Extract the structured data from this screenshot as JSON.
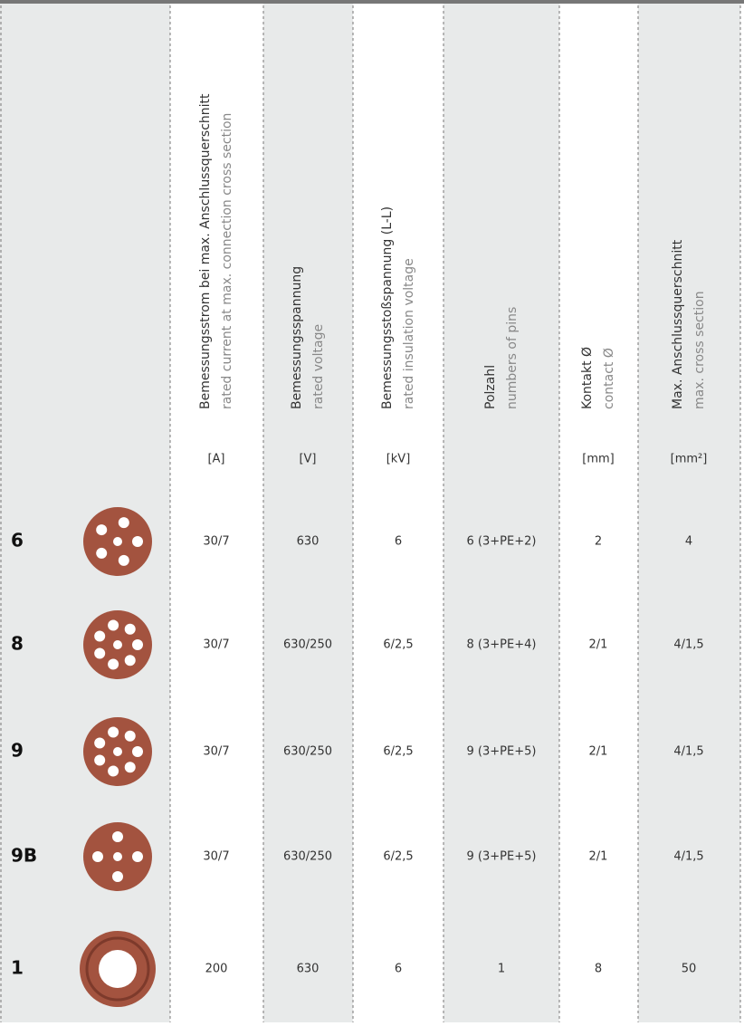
{
  "header": {
    "columns": [
      {
        "de": "Bemessungsstrom bei max. Anschlussquerschnitt",
        "en": "rated current at max. connection cross section",
        "unit": "[A]"
      },
      {
        "de": "Bemessungsspannung",
        "en": "rated voltage",
        "unit": "[V]"
      },
      {
        "de": "Bemessungsstoßspannung (L-L)",
        "en": "rated insulation voltage",
        "unit": "[kV]"
      },
      {
        "de": "Polzahl",
        "en": "numbers of pins"
      },
      {
        "de": "Kontakt Ø",
        "en": "contact Ø",
        "unit": "[mm]"
      },
      {
        "de": "Max. Anschlussquerschnitt",
        "en": "max. cross section",
        "unit": "[mm²]"
      }
    ]
  },
  "rows": [
    {
      "label": "6",
      "cells": [
        "30/7",
        "630",
        "6",
        "6 (3+PE+2)",
        "2",
        "4"
      ]
    },
    {
      "label": "8",
      "cells": [
        "30/7",
        "630/250",
        "6/2,5",
        "8 (3+PE+4)",
        "2/1",
        "4/1,5"
      ]
    },
    {
      "label": "9",
      "cells": [
        "30/7",
        "630/250",
        "6/2,5",
        "9 (3+PE+5)",
        "2/1",
        "4/1,5"
      ]
    },
    {
      "label": "9B",
      "cells": [
        "30/7",
        "630/250",
        "6/2,5",
        "9 (3+PE+5)",
        "2/1",
        "4/1,5"
      ]
    },
    {
      "label": "1",
      "cells": [
        "200",
        "630",
        "6",
        "1",
        "8",
        "50"
      ]
    }
  ]
}
